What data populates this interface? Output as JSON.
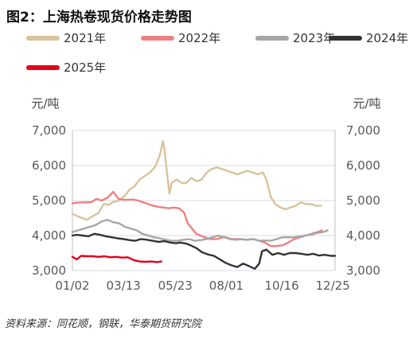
{
  "header": {
    "title": "图2：上海热卷现货价格走势图"
  },
  "footer": {
    "source": "资料来源：同花顺，钢联，华泰期货研究院"
  },
  "chart_data": {
    "type": "line",
    "title": "图2：上海热卷现货价格走势图",
    "y_unit_left": "元/吨",
    "y_unit_right": "元/吨",
    "ylim": [
      3000,
      7000
    ],
    "y_ticks": [
      3000,
      4000,
      5000,
      6000,
      7000
    ],
    "y_tick_labels": [
      "3,000",
      "4,000",
      "5,000",
      "6,000",
      "7,000"
    ],
    "x_tick_labels": [
      "01/02",
      "03/13",
      "05/23",
      "08/01",
      "10/16",
      "12/25"
    ],
    "x_tick_days": [
      2,
      72,
      143,
      213,
      289,
      359
    ],
    "xlim_days": [
      2,
      362
    ],
    "grid": true,
    "legend_position": "top",
    "series": [
      {
        "name": "2021年",
        "color": "#d9c29c",
        "points": [
          [
            2,
            4620
          ],
          [
            8,
            4560
          ],
          [
            15,
            4500
          ],
          [
            22,
            4450
          ],
          [
            30,
            4560
          ],
          [
            38,
            4650
          ],
          [
            45,
            4900
          ],
          [
            52,
            4880
          ],
          [
            58,
            4960
          ],
          [
            65,
            4990
          ],
          [
            72,
            5100
          ],
          [
            80,
            5300
          ],
          [
            87,
            5400
          ],
          [
            94,
            5600
          ],
          [
            101,
            5700
          ],
          [
            108,
            5800
          ],
          [
            115,
            5950
          ],
          [
            122,
            6300
          ],
          [
            126,
            6700
          ],
          [
            128,
            6500
          ],
          [
            131,
            5900
          ],
          [
            135,
            5200
          ],
          [
            138,
            5500
          ],
          [
            145,
            5600
          ],
          [
            152,
            5500
          ],
          [
            158,
            5500
          ],
          [
            165,
            5650
          ],
          [
            172,
            5550
          ],
          [
            179,
            5600
          ],
          [
            186,
            5800
          ],
          [
            193,
            5900
          ],
          [
            200,
            5950
          ],
          [
            207,
            5900
          ],
          [
            214,
            5850
          ],
          [
            221,
            5800
          ],
          [
            228,
            5750
          ],
          [
            235,
            5800
          ],
          [
            242,
            5850
          ],
          [
            249,
            5800
          ],
          [
            256,
            5750
          ],
          [
            263,
            5800
          ],
          [
            268,
            5600
          ],
          [
            274,
            5100
          ],
          [
            280,
            4900
          ],
          [
            287,
            4800
          ],
          [
            294,
            4750
          ],
          [
            301,
            4800
          ],
          [
            308,
            4850
          ],
          [
            315,
            4950
          ],
          [
            322,
            4900
          ],
          [
            329,
            4900
          ],
          [
            336,
            4850
          ],
          [
            343,
            4850
          ]
        ]
      },
      {
        "name": "2022年",
        "color": "#f08080",
        "points": [
          [
            2,
            4920
          ],
          [
            10,
            4940
          ],
          [
            20,
            4950
          ],
          [
            28,
            4950
          ],
          [
            35,
            5050
          ],
          [
            42,
            5000
          ],
          [
            50,
            5080
          ],
          [
            58,
            5250
          ],
          [
            65,
            5050
          ],
          [
            72,
            5020
          ],
          [
            78,
            5020
          ],
          [
            85,
            5030
          ],
          [
            92,
            5000
          ],
          [
            99,
            4950
          ],
          [
            106,
            4900
          ],
          [
            113,
            4850
          ],
          [
            120,
            4820
          ],
          [
            127,
            4800
          ],
          [
            134,
            4780
          ],
          [
            141,
            4800
          ],
          [
            148,
            4780
          ],
          [
            155,
            4660
          ],
          [
            160,
            4350
          ],
          [
            166,
            4200
          ],
          [
            172,
            4050
          ],
          [
            180,
            3980
          ],
          [
            190,
            3900
          ],
          [
            200,
            3900
          ],
          [
            210,
            3960
          ],
          [
            220,
            3900
          ],
          [
            230,
            3900
          ],
          [
            240,
            3880
          ],
          [
            250,
            3900
          ],
          [
            258,
            3850
          ],
          [
            266,
            3800
          ],
          [
            274,
            3700
          ],
          [
            282,
            3700
          ],
          [
            290,
            3720
          ],
          [
            298,
            3800
          ],
          [
            306,
            3900
          ],
          [
            314,
            3950
          ],
          [
            322,
            4000
          ],
          [
            330,
            4050
          ],
          [
            338,
            4100
          ],
          [
            344,
            4150
          ]
        ]
      },
      {
        "name": "2023年",
        "color": "#a6a6a6",
        "points": [
          [
            2,
            4100
          ],
          [
            10,
            4150
          ],
          [
            18,
            4200
          ],
          [
            26,
            4250
          ],
          [
            34,
            4300
          ],
          [
            42,
            4400
          ],
          [
            50,
            4450
          ],
          [
            58,
            4380
          ],
          [
            66,
            4350
          ],
          [
            74,
            4250
          ],
          [
            82,
            4200
          ],
          [
            90,
            4150
          ],
          [
            98,
            4050
          ],
          [
            106,
            4000
          ],
          [
            114,
            3950
          ],
          [
            122,
            3920
          ],
          [
            130,
            3880
          ],
          [
            138,
            3850
          ],
          [
            146,
            3850
          ],
          [
            154,
            3880
          ],
          [
            162,
            3900
          ],
          [
            170,
            3850
          ],
          [
            178,
            3870
          ],
          [
            186,
            3900
          ],
          [
            194,
            3950
          ],
          [
            202,
            4000
          ],
          [
            210,
            3950
          ],
          [
            218,
            3900
          ],
          [
            226,
            3880
          ],
          [
            234,
            3900
          ],
          [
            242,
            3880
          ],
          [
            250,
            3900
          ],
          [
            258,
            3850
          ],
          [
            266,
            3860
          ],
          [
            274,
            3850
          ],
          [
            282,
            3900
          ],
          [
            290,
            3950
          ],
          [
            298,
            3950
          ],
          [
            306,
            3950
          ],
          [
            314,
            3980
          ],
          [
            322,
            4000
          ],
          [
            330,
            4030
          ],
          [
            338,
            4080
          ],
          [
            346,
            4100
          ],
          [
            352,
            4150
          ]
        ]
      },
      {
        "name": "2024年",
        "color": "#333333",
        "points": [
          [
            2,
            4000
          ],
          [
            8,
            4020
          ],
          [
            16,
            4000
          ],
          [
            24,
            3980
          ],
          [
            32,
            4050
          ],
          [
            40,
            4020
          ],
          [
            48,
            3980
          ],
          [
            56,
            3950
          ],
          [
            64,
            3920
          ],
          [
            72,
            3900
          ],
          [
            80,
            3870
          ],
          [
            88,
            3850
          ],
          [
            96,
            3900
          ],
          [
            104,
            3880
          ],
          [
            112,
            3850
          ],
          [
            120,
            3820
          ],
          [
            128,
            3840
          ],
          [
            136,
            3800
          ],
          [
            144,
            3780
          ],
          [
            150,
            3800
          ],
          [
            158,
            3770
          ],
          [
            164,
            3720
          ],
          [
            172,
            3640
          ],
          [
            180,
            3520
          ],
          [
            188,
            3460
          ],
          [
            196,
            3420
          ],
          [
            204,
            3320
          ],
          [
            212,
            3220
          ],
          [
            220,
            3150
          ],
          [
            228,
            3100
          ],
          [
            236,
            3200
          ],
          [
            244,
            3130
          ],
          [
            252,
            3050
          ],
          [
            258,
            3200
          ],
          [
            262,
            3550
          ],
          [
            268,
            3600
          ],
          [
            276,
            3450
          ],
          [
            284,
            3500
          ],
          [
            292,
            3450
          ],
          [
            300,
            3500
          ],
          [
            308,
            3500
          ],
          [
            316,
            3480
          ],
          [
            324,
            3450
          ],
          [
            332,
            3480
          ],
          [
            340,
            3430
          ],
          [
            348,
            3450
          ],
          [
            356,
            3420
          ],
          [
            362,
            3420
          ]
        ]
      },
      {
        "name": "2025年",
        "color": "#e3001b",
        "points": [
          [
            2,
            3390
          ],
          [
            8,
            3320
          ],
          [
            14,
            3420
          ],
          [
            22,
            3410
          ],
          [
            30,
            3410
          ],
          [
            38,
            3390
          ],
          [
            46,
            3410
          ],
          [
            54,
            3380
          ],
          [
            62,
            3390
          ],
          [
            70,
            3370
          ],
          [
            78,
            3380
          ],
          [
            86,
            3300
          ],
          [
            94,
            3260
          ],
          [
            102,
            3250
          ],
          [
            110,
            3260
          ],
          [
            118,
            3240
          ],
          [
            124,
            3260
          ]
        ]
      }
    ]
  }
}
